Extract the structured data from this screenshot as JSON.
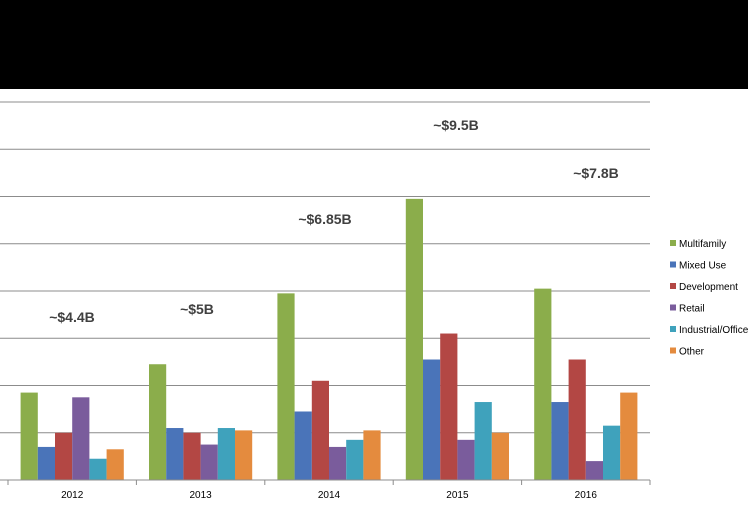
{
  "chart_data": {
    "type": "bar",
    "categories": [
      "2012",
      "2013",
      "2014",
      "2015",
      "2016"
    ],
    "series": [
      {
        "name": "Multifamily",
        "color": "#8BAD4B",
        "values": [
          1.85,
          2.45,
          3.95,
          5.95,
          4.05
        ]
      },
      {
        "name": "Mixed Use",
        "color": "#4A74B9",
        "values": [
          0.7,
          1.1,
          1.45,
          2.55,
          1.65
        ]
      },
      {
        "name": "Development",
        "color": "#B34744",
        "values": [
          1.0,
          1.0,
          2.1,
          3.1,
          2.55
        ]
      },
      {
        "name": "Retail",
        "color": "#7A5C9C",
        "values": [
          1.75,
          0.75,
          0.7,
          0.85,
          0.4
        ]
      },
      {
        "name": "Industrial/Office",
        "color": "#3FA2BC",
        "values": [
          0.45,
          1.1,
          0.85,
          1.65,
          1.15
        ]
      },
      {
        "name": "Other",
        "color": "#E48B3E",
        "values": [
          0.65,
          1.05,
          1.05,
          1.0,
          1.85
        ]
      }
    ],
    "annotations": [
      "~$4.4B",
      "~$5B",
      "~$6.85B",
      "~$9.5B",
      "~$7.8B"
    ],
    "ylim": [
      0,
      8
    ],
    "grid": true,
    "legend_position": "right"
  }
}
